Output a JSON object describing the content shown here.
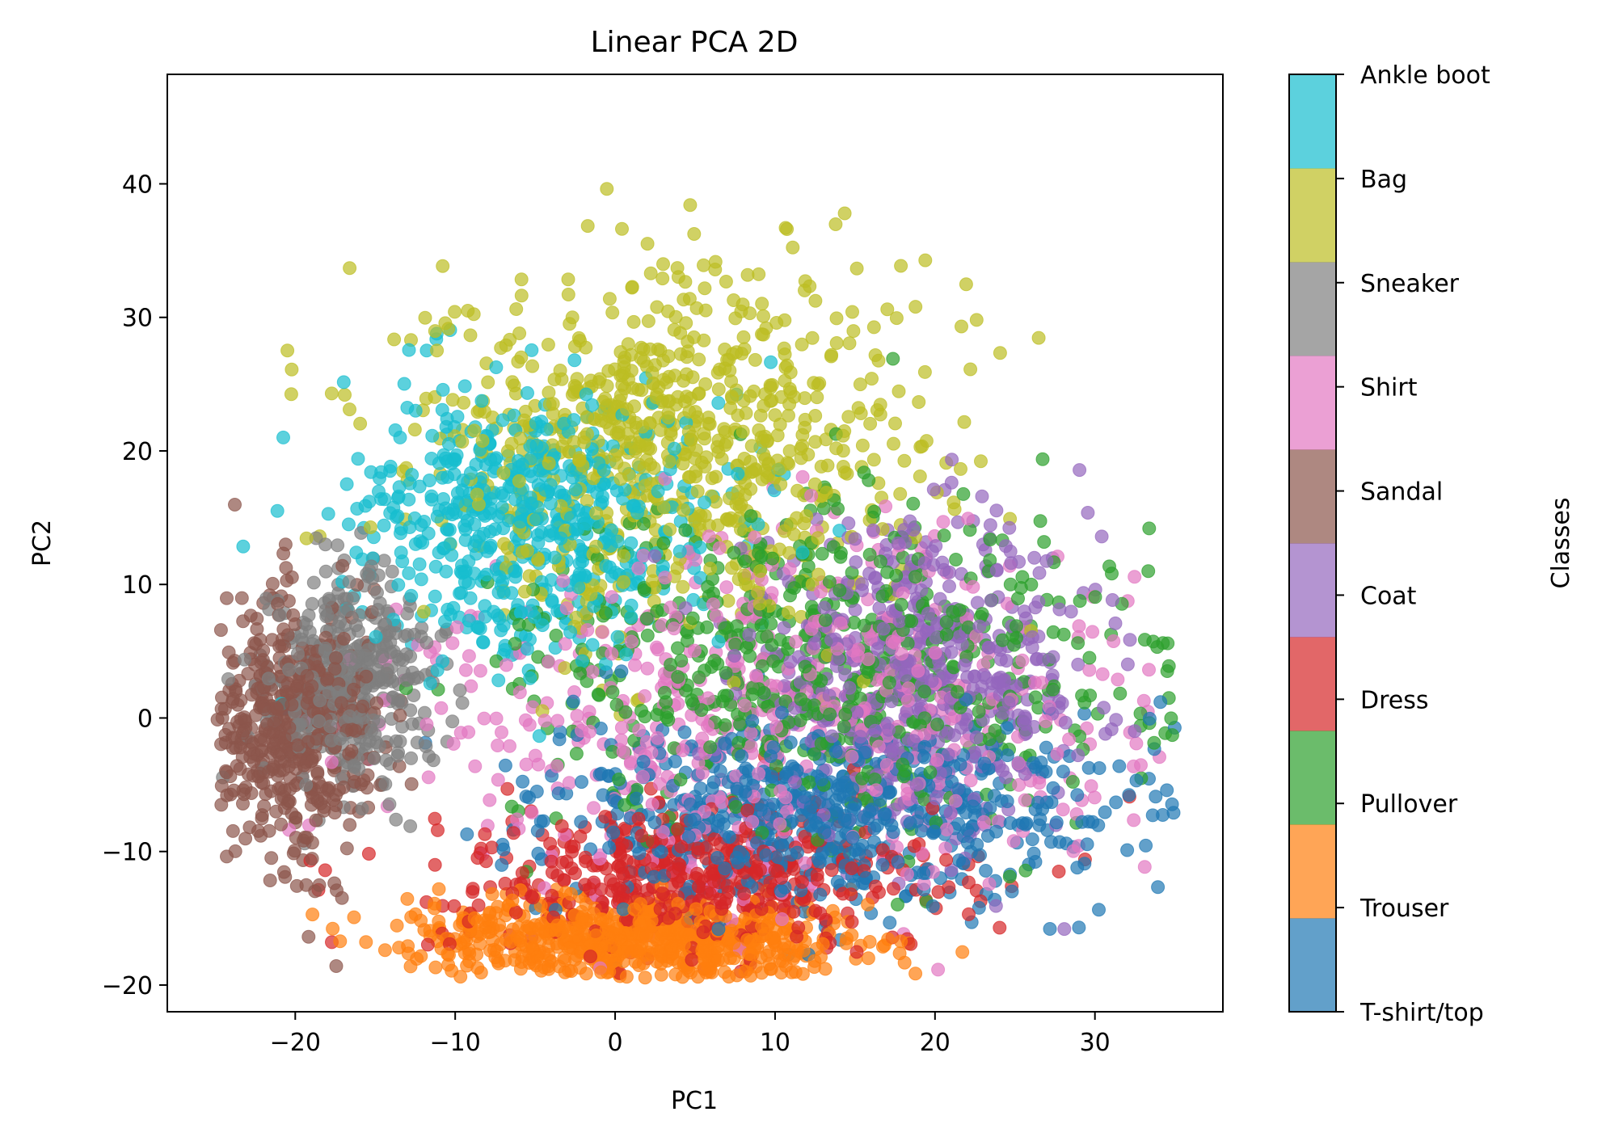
{
  "chart_data": {
    "type": "scatter",
    "title": "Linear PCA 2D",
    "xlabel": "PC1",
    "ylabel": "PC2",
    "xlim": [
      -28,
      38
    ],
    "ylim": [
      -22,
      48.2
    ],
    "xticks": [
      -20,
      -10,
      0,
      10,
      20,
      30
    ],
    "yticks": [
      -20,
      -10,
      0,
      10,
      20,
      30,
      40
    ],
    "xtick_labels": [
      "−20",
      "−10",
      "0",
      "10",
      "20",
      "30"
    ],
    "ytick_labels": [
      "−20",
      "−10",
      "0",
      "10",
      "20",
      "30",
      "40"
    ],
    "grid": false,
    "point_alpha": 0.7,
    "colorbar": {
      "label": "Classes",
      "tick_labels": [
        "T-shirt/top",
        "Trouser",
        "Pullover",
        "Dress",
        "Coat",
        "Sandal",
        "Shirt",
        "Sneaker",
        "Bag",
        "Ankle boot"
      ]
    },
    "series": [
      {
        "name": "T-shirt/top",
        "color": "#1f77b4",
        "center": [
          14.0,
          -7.0
        ],
        "spread": [
          9.0,
          3.5
        ],
        "count": 650
      },
      {
        "name": "Trouser",
        "color": "#ff7f0e",
        "center": [
          1.5,
          -16.5
        ],
        "spread": [
          7.0,
          1.6
        ],
        "count": 700
      },
      {
        "name": "Pullover",
        "color": "#2ca02c",
        "center": [
          13.0,
          4.0
        ],
        "spread": [
          9.0,
          6.0
        ],
        "count": 650
      },
      {
        "name": "Dress",
        "color": "#d62728",
        "center": [
          5.0,
          -12.0
        ],
        "spread": [
          7.5,
          2.8
        ],
        "count": 500
      },
      {
        "name": "Coat",
        "color": "#9467bd",
        "center": [
          19.0,
          3.0
        ],
        "spread": [
          5.5,
          5.5
        ],
        "count": 550
      },
      {
        "name": "Sandal",
        "color": "#8c564b",
        "center": [
          -20.0,
          -1.0
        ],
        "spread": [
          2.5,
          5.0
        ],
        "count": 500
      },
      {
        "name": "Shirt",
        "color": "#e377c2",
        "center": [
          10.0,
          0.0
        ],
        "spread": [
          11.0,
          6.5
        ],
        "count": 600
      },
      {
        "name": "Sneaker",
        "color": "#7f7f7f",
        "center": [
          -16.5,
          3.0
        ],
        "spread": [
          2.5,
          4.0
        ],
        "count": 400
      },
      {
        "name": "Bag",
        "color": "#bcbd22",
        "center": [
          4.0,
          20.0
        ],
        "spread": [
          8.0,
          7.0
        ],
        "count": 800
      },
      {
        "name": "Ankle boot",
        "color": "#17becf",
        "center": [
          -5.0,
          15.0
        ],
        "spread": [
          5.5,
          5.0
        ],
        "count": 600
      }
    ]
  }
}
